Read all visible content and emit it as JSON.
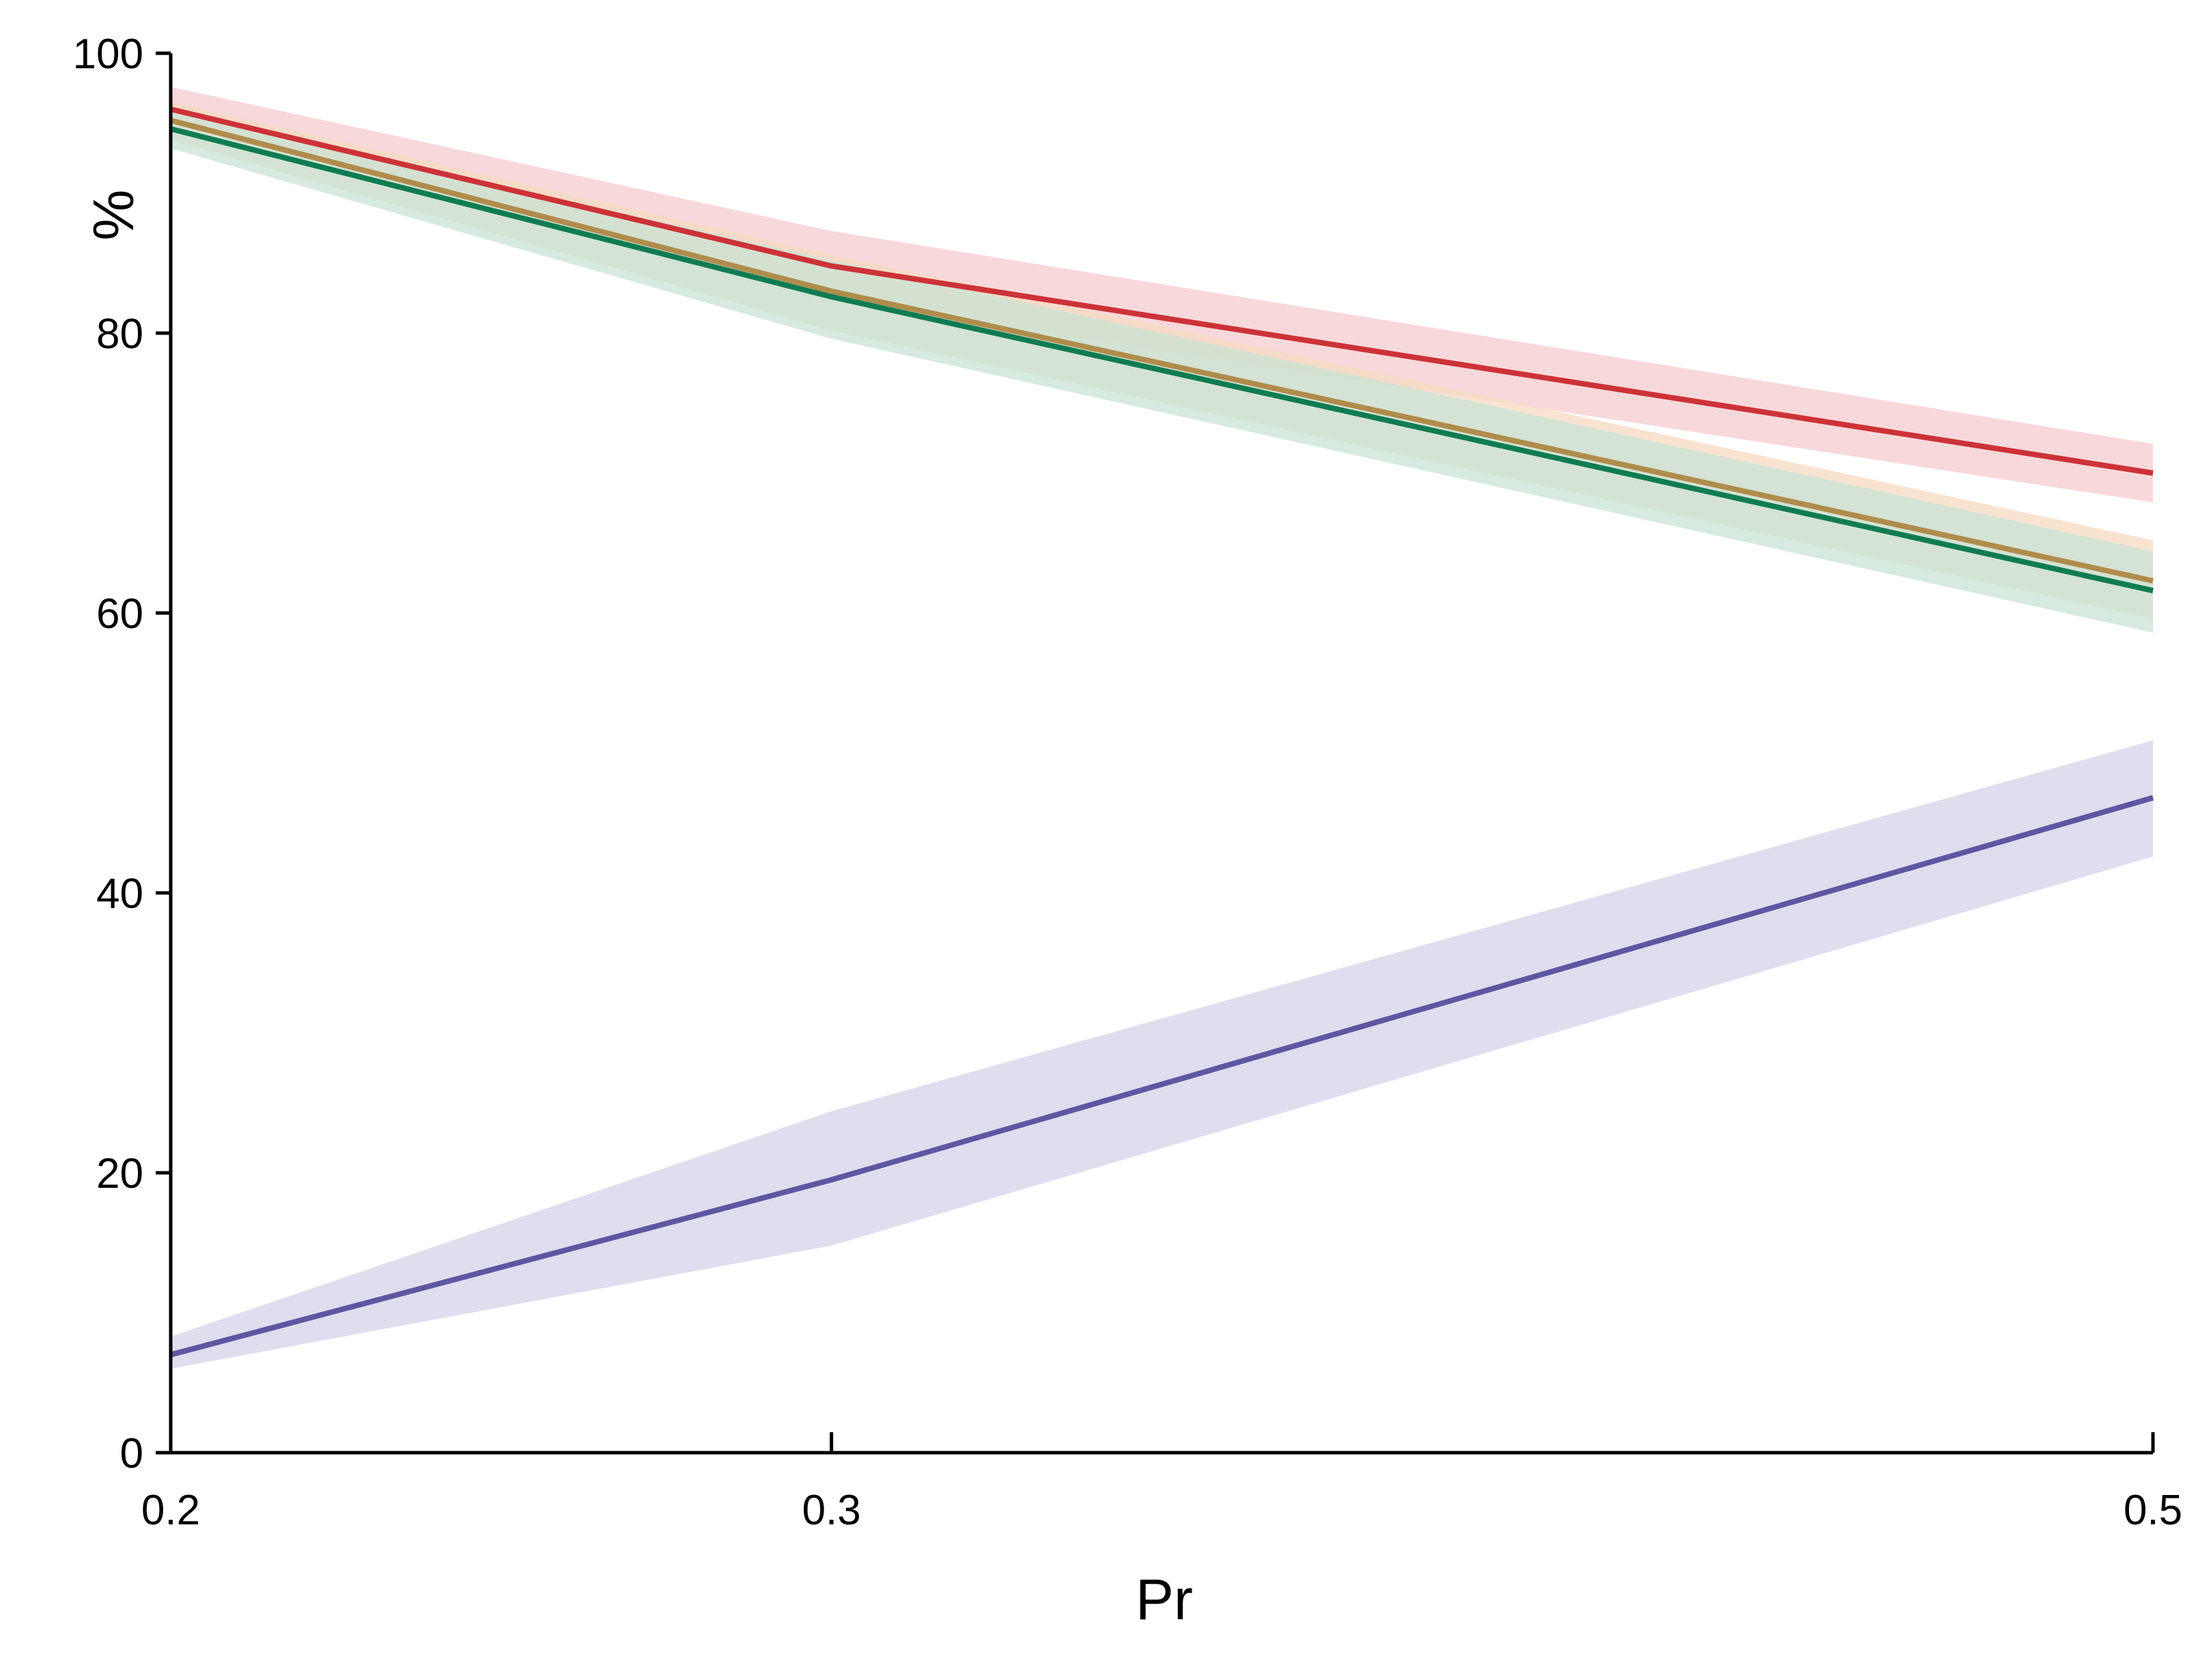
{
  "chart_data": {
    "type": "line",
    "title": "",
    "xlabel": "Pr",
    "ylabel": "%",
    "x": [
      0.2,
      0.3,
      0.5
    ],
    "x_ticks": [
      "0.2",
      "0.3",
      "0.5"
    ],
    "y_ticks": [
      "0",
      "20",
      "40",
      "60",
      "80",
      "100"
    ],
    "xlim": [
      0.2,
      0.5
    ],
    "ylim": [
      0,
      100
    ],
    "grid": false,
    "series": [
      {
        "color": "#d5d1e8",
        "line_color": "#5d57a2",
        "values": [
          7.0,
          19.5,
          46.8
        ],
        "lower": [
          6.0,
          14.8,
          42.6
        ],
        "upper": [
          8.3,
          24.4,
          50.9
        ]
      },
      {
        "color": "#f4cccf",
        "line_color": "#cc3237",
        "values": [
          96.0,
          84.8,
          70.0
        ],
        "lower": [
          95.0,
          82.4,
          67.9
        ],
        "upper": [
          97.6,
          87.3,
          72.1
        ]
      },
      {
        "color": "#f5d9c2",
        "line_color": "#b08c4c",
        "values": [
          95.2,
          83.0,
          62.3
        ],
        "lower": [
          93.8,
          80.2,
          59.6
        ],
        "upper": [
          96.5,
          85.6,
          65.2
        ]
      },
      {
        "color": "#c8e3d4",
        "line_color": "#0e7b51",
        "values": [
          94.6,
          82.6,
          61.6
        ],
        "lower": [
          93.2,
          79.6,
          58.6
        ],
        "upper": [
          95.9,
          85.2,
          64.4
        ]
      }
    ]
  }
}
